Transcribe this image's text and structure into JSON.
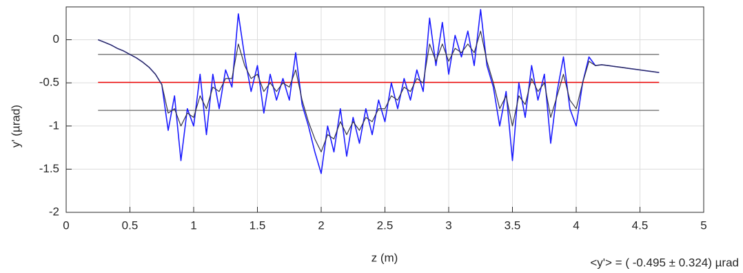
{
  "chart_data": {
    "type": "line",
    "xlabel": "z (m)",
    "ylabel": "y' (µrad)",
    "annotation": "<y'> = ( -0.495 ± 0.324) µrad",
    "xlim": [
      0,
      5
    ],
    "ylim": [
      -2,
      0.38
    ],
    "xticks": [
      0,
      0.5,
      1,
      1.5,
      2,
      2.5,
      3,
      3.5,
      4,
      4.5,
      5
    ],
    "yticks": [
      -2,
      -1.5,
      -1,
      -0.5,
      0
    ],
    "grid": true,
    "x": [
      0.25,
      0.3,
      0.35,
      0.4,
      0.45,
      0.5,
      0.55,
      0.6,
      0.65,
      0.7,
      0.75,
      0.8,
      0.85,
      0.9,
      0.95,
      1.0,
      1.05,
      1.1,
      1.15,
      1.2,
      1.25,
      1.3,
      1.35,
      1.4,
      1.45,
      1.5,
      1.55,
      1.6,
      1.65,
      1.7,
      1.75,
      1.8,
      1.85,
      1.9,
      1.95,
      2.0,
      2.05,
      2.1,
      2.15,
      2.2,
      2.25,
      2.3,
      2.35,
      2.4,
      2.45,
      2.5,
      2.55,
      2.6,
      2.65,
      2.7,
      2.75,
      2.8,
      2.85,
      2.9,
      2.95,
      3.0,
      3.05,
      3.1,
      3.15,
      3.2,
      3.25,
      3.3,
      3.35,
      3.4,
      3.45,
      3.5,
      3.55,
      3.6,
      3.65,
      3.7,
      3.75,
      3.8,
      3.85,
      3.9,
      3.95,
      4.0,
      4.05,
      4.1,
      4.15,
      4.2,
      4.25,
      4.3,
      4.35,
      4.4,
      4.45,
      4.5,
      4.55,
      4.6,
      4.65
    ],
    "series": [
      {
        "color": "#1a1aff",
        "values": [
          0,
          -0.03,
          -0.06,
          -0.1,
          -0.13,
          -0.17,
          -0.21,
          -0.26,
          -0.32,
          -0.4,
          -0.52,
          -1.05,
          -0.65,
          -1.4,
          -0.8,
          -1.0,
          -0.4,
          -1.1,
          -0.4,
          -0.8,
          -0.35,
          -0.55,
          0.3,
          -0.2,
          -0.6,
          -0.3,
          -0.85,
          -0.4,
          -0.7,
          -0.45,
          -0.7,
          -0.15,
          -0.75,
          -1.0,
          -1.3,
          -1.55,
          -1.0,
          -1.3,
          -0.8,
          -1.35,
          -0.9,
          -1.2,
          -0.8,
          -1.1,
          -0.7,
          -0.95,
          -0.5,
          -0.8,
          -0.45,
          -0.7,
          -0.35,
          -0.6,
          0.25,
          -0.3,
          0.2,
          -0.4,
          0.05,
          -0.2,
          0.1,
          -0.3,
          0.35,
          -0.3,
          -0.55,
          -1.0,
          -0.6,
          -1.4,
          -0.5,
          -0.9,
          -0.3,
          -0.7,
          -0.4,
          -1.2,
          -0.6,
          -0.2,
          -0.8,
          -1.0,
          -0.5,
          -0.2,
          -0.3,
          -0.29,
          -0.3,
          -0.31,
          -0.32,
          -0.33,
          -0.34,
          -0.35,
          -0.36,
          -0.37,
          -0.38
        ]
      },
      {
        "color": "#333344",
        "values": [
          0,
          -0.03,
          -0.06,
          -0.1,
          -0.13,
          -0.17,
          -0.21,
          -0.26,
          -0.32,
          -0.4,
          -0.52,
          -0.85,
          -0.8,
          -1.0,
          -0.85,
          -0.9,
          -0.65,
          -0.8,
          -0.55,
          -0.6,
          -0.45,
          -0.45,
          -0.05,
          -0.3,
          -0.45,
          -0.4,
          -0.6,
          -0.5,
          -0.6,
          -0.5,
          -0.55,
          -0.35,
          -0.7,
          -0.95,
          -1.15,
          -1.3,
          -1.1,
          -1.15,
          -0.95,
          -1.1,
          -0.95,
          -1.05,
          -0.9,
          -0.95,
          -0.8,
          -0.8,
          -0.65,
          -0.7,
          -0.55,
          -0.6,
          -0.45,
          -0.5,
          -0.05,
          -0.25,
          -0.05,
          -0.25,
          -0.1,
          -0.15,
          -0.05,
          -0.15,
          0.1,
          -0.25,
          -0.5,
          -0.8,
          -0.65,
          -1.0,
          -0.65,
          -0.75,
          -0.45,
          -0.6,
          -0.5,
          -0.9,
          -0.65,
          -0.4,
          -0.7,
          -0.8,
          -0.5,
          -0.25,
          -0.3,
          -0.29,
          -0.3,
          -0.31,
          -0.32,
          -0.33,
          -0.34,
          -0.35,
          -0.36,
          -0.37,
          -0.38
        ]
      }
    ],
    "hlines": [
      {
        "value": -0.495,
        "color": "#ee0000"
      },
      {
        "value": -0.171,
        "color": "#7f7f7f"
      },
      {
        "value": -0.819,
        "color": "#7f7f7f"
      }
    ]
  }
}
